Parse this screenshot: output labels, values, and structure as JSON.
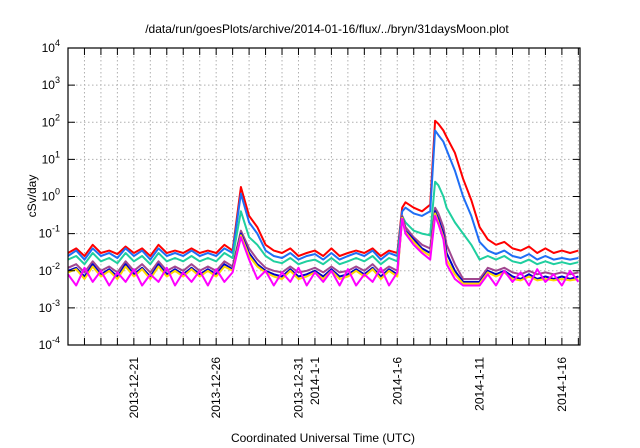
{
  "chart_data": {
    "type": "line",
    "title": "/data/run/goesPlots/archive/2014-01-16/flux/../bryn/31daysMoon.plot",
    "xlabel": "Coordinated Universal Time (UTC)",
    "ylabel": "cSv/day",
    "yscale": "log",
    "ylim": [
      0.0001,
      10000
    ],
    "yticks": [
      {
        "base": "10",
        "exp": "-4"
      },
      {
        "base": "10",
        "exp": "-3"
      },
      {
        "base": "10",
        "exp": "-2"
      },
      {
        "base": "10",
        "exp": "-1"
      },
      {
        "base": "10",
        "exp": "0"
      },
      {
        "base": "10",
        "exp": "1"
      },
      {
        "base": "10",
        "exp": "2"
      },
      {
        "base": "10",
        "exp": "3"
      },
      {
        "base": "10",
        "exp": "4"
      }
    ],
    "x_unit": "days since 2013-12-17 00:00 UTC",
    "xlim": [
      0,
      31.1
    ],
    "xtick_labels": [
      {
        "day": 4,
        "label": "2013-12-21"
      },
      {
        "day": 9,
        "label": "2013-12-26"
      },
      {
        "day": 14,
        "label": "2013-12-31"
      },
      {
        "day": 15,
        "label": "2014-1-1"
      },
      {
        "day": 20,
        "label": "2014-1-6"
      },
      {
        "day": 25,
        "label": "2014-1-11"
      },
      {
        "day": 30,
        "label": "2014-1-16"
      }
    ],
    "minor_xtick_every_days": 1,
    "grid": true,
    "legend": "none",
    "x": [
      0,
      0.5,
      1,
      1.5,
      2,
      2.5,
      3,
      3.5,
      4,
      4.5,
      5,
      5.5,
      6,
      6.5,
      7,
      7.5,
      8,
      8.5,
      9,
      9.5,
      10,
      10.5,
      11,
      11.5,
      12,
      12.5,
      13,
      13.5,
      14,
      14.5,
      15,
      15.5,
      16,
      16.5,
      17,
      17.5,
      18,
      18.5,
      19,
      19.5,
      20,
      20.3,
      20.5,
      21,
      21.5,
      22,
      22.3,
      22.5,
      22.8,
      23,
      23.5,
      24,
      24.5,
      25,
      25.5,
      26,
      26.5,
      27,
      27.5,
      28,
      28.5,
      29,
      29.5,
      30,
      30.5,
      31
    ],
    "series": [
      {
        "name": "red",
        "color": "#ff0000",
        "values": [
          0.03,
          0.04,
          0.025,
          0.05,
          0.03,
          0.035,
          0.028,
          0.045,
          0.03,
          0.04,
          0.025,
          0.05,
          0.03,
          0.035,
          0.03,
          0.04,
          0.03,
          0.035,
          0.03,
          0.05,
          0.035,
          1.8,
          0.3,
          0.15,
          0.05,
          0.035,
          0.03,
          0.04,
          0.025,
          0.03,
          0.035,
          0.025,
          0.04,
          0.025,
          0.03,
          0.035,
          0.03,
          0.04,
          0.025,
          0.035,
          0.03,
          0.5,
          0.7,
          0.5,
          0.4,
          0.6,
          110,
          90,
          60,
          40,
          15,
          3,
          0.8,
          0.15,
          0.07,
          0.05,
          0.06,
          0.04,
          0.035,
          0.045,
          0.03,
          0.04,
          0.03,
          0.035,
          0.03,
          0.035
        ]
      },
      {
        "name": "blue",
        "color": "#1f6ef5",
        "values": [
          0.025,
          0.035,
          0.02,
          0.04,
          0.025,
          0.03,
          0.022,
          0.04,
          0.025,
          0.035,
          0.02,
          0.04,
          0.025,
          0.03,
          0.025,
          0.035,
          0.025,
          0.03,
          0.025,
          0.04,
          0.03,
          1.2,
          0.2,
          0.1,
          0.035,
          0.025,
          0.022,
          0.03,
          0.02,
          0.025,
          0.028,
          0.02,
          0.03,
          0.02,
          0.025,
          0.03,
          0.025,
          0.035,
          0.02,
          0.03,
          0.025,
          0.4,
          0.5,
          0.35,
          0.3,
          0.4,
          60,
          45,
          30,
          18,
          5,
          1,
          0.3,
          0.06,
          0.035,
          0.028,
          0.035,
          0.025,
          0.022,
          0.028,
          0.02,
          0.025,
          0.02,
          0.022,
          0.02,
          0.022
        ]
      },
      {
        "name": "teal",
        "color": "#1fcf9f",
        "values": [
          0.02,
          0.025,
          0.015,
          0.03,
          0.018,
          0.022,
          0.016,
          0.03,
          0.018,
          0.025,
          0.015,
          0.03,
          0.018,
          0.022,
          0.018,
          0.025,
          0.018,
          0.022,
          0.018,
          0.03,
          0.022,
          0.4,
          0.08,
          0.05,
          0.025,
          0.018,
          0.016,
          0.022,
          0.015,
          0.018,
          0.02,
          0.015,
          0.022,
          0.015,
          0.018,
          0.022,
          0.018,
          0.025,
          0.015,
          0.022,
          0.018,
          0.3,
          0.2,
          0.12,
          0.1,
          0.09,
          2.5,
          2,
          1,
          0.5,
          0.2,
          0.1,
          0.05,
          0.02,
          0.025,
          0.02,
          0.025,
          0.018,
          0.016,
          0.02,
          0.015,
          0.018,
          0.015,
          0.017,
          0.015,
          0.017
        ]
      },
      {
        "name": "mauve",
        "color": "#a1478f",
        "values": [
          0.012,
          0.015,
          0.009,
          0.018,
          0.01,
          0.013,
          0.009,
          0.018,
          0.01,
          0.015,
          0.009,
          0.018,
          0.01,
          0.013,
          0.01,
          0.015,
          0.01,
          0.013,
          0.01,
          0.018,
          0.013,
          0.12,
          0.04,
          0.02,
          0.012,
          0.01,
          0.009,
          0.013,
          0.009,
          0.01,
          0.012,
          0.009,
          0.013,
          0.009,
          0.01,
          0.013,
          0.01,
          0.015,
          0.009,
          0.013,
          0.01,
          0.3,
          0.15,
          0.08,
          0.05,
          0.04,
          0.5,
          0.35,
          0.15,
          0.05,
          0.015,
          0.006,
          0.006,
          0.006,
          0.012,
          0.01,
          0.012,
          0.009,
          0.008,
          0.01,
          0.008,
          0.009,
          0.008,
          0.009,
          0.008,
          0.009
        ]
      },
      {
        "name": "darkblue",
        "color": "#0000c8",
        "values": [
          0.01,
          0.012,
          0.007,
          0.015,
          0.008,
          0.011,
          0.007,
          0.015,
          0.008,
          0.012,
          0.007,
          0.015,
          0.008,
          0.011,
          0.008,
          0.012,
          0.008,
          0.011,
          0.008,
          0.015,
          0.011,
          0.1,
          0.03,
          0.015,
          0.01,
          0.008,
          0.007,
          0.011,
          0.007,
          0.008,
          0.01,
          0.007,
          0.011,
          0.007,
          0.008,
          0.011,
          0.008,
          0.012,
          0.007,
          0.011,
          0.008,
          0.28,
          0.12,
          0.07,
          0.04,
          0.03,
          0.4,
          0.25,
          0.1,
          0.03,
          0.01,
          0.005,
          0.005,
          0.005,
          0.01,
          0.008,
          0.01,
          0.007,
          0.006,
          0.008,
          0.006,
          0.007,
          0.006,
          0.007,
          0.006,
          0.007
        ]
      },
      {
        "name": "yellow",
        "color": "#ffd900",
        "values": [
          0.009,
          0.011,
          0.006,
          0.013,
          0.007,
          0.01,
          0.006,
          0.013,
          0.007,
          0.011,
          0.006,
          0.013,
          0.007,
          0.01,
          0.007,
          0.011,
          0.007,
          0.01,
          0.007,
          0.013,
          0.01,
          0.09,
          0.025,
          0.013,
          0.009,
          0.007,
          0.006,
          0.01,
          0.006,
          0.007,
          0.009,
          0.006,
          0.01,
          0.006,
          0.007,
          0.01,
          0.007,
          0.011,
          0.006,
          0.01,
          0.007,
          0.27,
          0.11,
          0.06,
          0.035,
          0.025,
          0.35,
          0.2,
          0.08,
          0.02,
          0.008,
          0.0045,
          0.0045,
          0.0045,
          0.009,
          0.007,
          0.009,
          0.006,
          0.0055,
          0.007,
          0.0055,
          0.006,
          0.0055,
          0.006,
          0.0055,
          0.006
        ]
      },
      {
        "name": "magenta",
        "color": "#ff00ff",
        "values": [
          0.008,
          0.004,
          0.012,
          0.005,
          0.01,
          0.004,
          0.009,
          0.005,
          0.011,
          0.004,
          0.008,
          0.005,
          0.012,
          0.004,
          0.009,
          0.005,
          0.01,
          0.004,
          0.011,
          0.005,
          0.009,
          0.08,
          0.02,
          0.006,
          0.01,
          0.004,
          0.009,
          0.005,
          0.012,
          0.004,
          0.009,
          0.005,
          0.01,
          0.004,
          0.011,
          0.004,
          0.008,
          0.005,
          0.012,
          0.004,
          0.009,
          0.25,
          0.1,
          0.05,
          0.03,
          0.02,
          0.3,
          0.18,
          0.07,
          0.015,
          0.006,
          0.004,
          0.004,
          0.004,
          0.008,
          0.004,
          0.01,
          0.005,
          0.009,
          0.004,
          0.011,
          0.005,
          0.008,
          0.004,
          0.01,
          0.005
        ]
      }
    ]
  }
}
